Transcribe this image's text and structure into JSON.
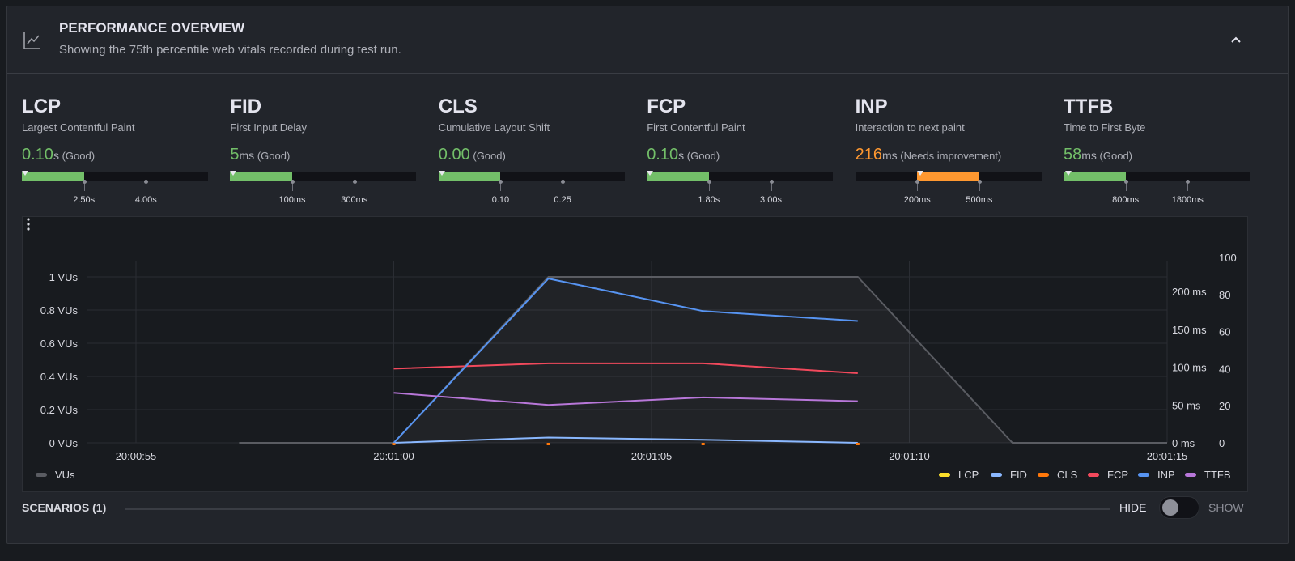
{
  "header": {
    "title": "PERFORMANCE OVERVIEW",
    "subtitle": "Showing the 75th percentile web vitals recorded during test run.",
    "icon": "line-chart-icon",
    "collapse_icon": "chevron-up-icon"
  },
  "colors": {
    "good": "#73bf69",
    "needs_improvement": "#ff9830",
    "poor": "#f2495c"
  },
  "metrics": [
    {
      "abbr": "LCP",
      "name": "Largest Contentful Paint",
      "value": "0.10",
      "unit": "s",
      "status": "(Good)",
      "rating": "good",
      "numeric": 0.1,
      "thresholds": [
        2.5,
        4.0
      ],
      "tick_labels": [
        "2.50s",
        "4.00s"
      ]
    },
    {
      "abbr": "FID",
      "name": "First Input Delay",
      "value": "5",
      "unit": "ms",
      "status": "(Good)",
      "rating": "good",
      "numeric": 5,
      "thresholds": [
        100,
        300
      ],
      "tick_labels": [
        "100ms",
        "300ms"
      ]
    },
    {
      "abbr": "CLS",
      "name": "Cumulative Layout Shift",
      "value": "0.00",
      "unit": "",
      "status": "(Good)",
      "rating": "good",
      "numeric": 0,
      "thresholds": [
        0.1,
        0.25
      ],
      "tick_labels": [
        "0.10",
        "0.25"
      ]
    },
    {
      "abbr": "FCP",
      "name": "First Contentful Paint",
      "value": "0.10",
      "unit": "s",
      "status": "(Good)",
      "rating": "good",
      "numeric": 0.1,
      "thresholds": [
        1.8,
        3.0
      ],
      "tick_labels": [
        "1.80s",
        "3.00s"
      ]
    },
    {
      "abbr": "INP",
      "name": "Interaction to next paint",
      "value": "216",
      "unit": "ms",
      "status": "(Needs improvement)",
      "rating": "needs_improvement",
      "numeric": 216,
      "thresholds": [
        200,
        500
      ],
      "tick_labels": [
        "200ms",
        "500ms"
      ]
    },
    {
      "abbr": "TTFB",
      "name": "Time to First Byte",
      "value": "58",
      "unit": "ms",
      "status": "(Good)",
      "rating": "good",
      "numeric": 58,
      "thresholds": [
        800,
        1800
      ],
      "tick_labels": [
        "800ms",
        "1800ms"
      ]
    }
  ],
  "chart_data": {
    "type": "line",
    "x_ticks": [
      "20:00:55",
      "20:01:00",
      "20:01:05",
      "20:01:10",
      "20:01:15"
    ],
    "xlim": [
      "20:00:54",
      "20:01:15"
    ],
    "y_left": {
      "ticks": [
        "0 VUs",
        "0.2 VUs",
        "0.4 VUs",
        "0.6 VUs",
        "0.8 VUs",
        "1 VUs"
      ],
      "range": [
        0,
        1
      ]
    },
    "y_ms": {
      "ticks": [
        "0 ms",
        "50 ms",
        "100 ms",
        "150 ms",
        "200 ms"
      ],
      "range": [
        0,
        219
      ]
    },
    "y_pct": {
      "ticks": [
        "0",
        "20",
        "40",
        "60",
        "80",
        "100"
      ],
      "range": [
        0,
        100
      ]
    },
    "grid": true,
    "vus": {
      "name": "VUs",
      "color": "#5a5c62",
      "x": [
        "20:00:57",
        "20:01:00",
        "20:01:03",
        "20:01:09",
        "20:01:12",
        "20:01:15"
      ],
      "values": [
        0,
        0,
        1,
        1,
        0,
        0
      ]
    },
    "series": [
      {
        "name": "LCP",
        "color": "#fade2a",
        "axis": "ms",
        "x": [],
        "values": []
      },
      {
        "name": "FID",
        "color": "#8ab8ff",
        "axis": "ms",
        "x": [
          "20:01:00",
          "20:01:03",
          "20:01:06",
          "20:01:09"
        ],
        "values": [
          0,
          7,
          4,
          0
        ]
      },
      {
        "name": "CLS",
        "color": "#ff780a",
        "axis": "pct",
        "x": [
          "20:01:00",
          "20:01:03",
          "20:01:06",
          "20:01:09"
        ],
        "values": [
          0,
          0,
          0,
          0
        ]
      },
      {
        "name": "FCP",
        "color": "#f2495c",
        "axis": "ms",
        "x": [
          "20:01:00",
          "20:01:03",
          "20:01:06",
          "20:01:09"
        ],
        "values": [
          98,
          105,
          105,
          92
        ]
      },
      {
        "name": "INP",
        "color": "#5794f2",
        "axis": "ms",
        "x": [
          "20:01:00",
          "20:01:03",
          "20:01:06",
          "20:01:09"
        ],
        "values": [
          0,
          217,
          174,
          161
        ]
      },
      {
        "name": "TTFB",
        "color": "#b877d9",
        "axis": "ms",
        "x": [
          "20:01:00",
          "20:01:03",
          "20:01:06",
          "20:01:09"
        ],
        "values": [
          66,
          50,
          60,
          55
        ]
      }
    ],
    "legend": "bottom-right"
  },
  "chart_menu_icon": "kebab-menu-icon",
  "scenarios": {
    "label": "SCENARIOS (1)",
    "hide_label": "HIDE",
    "show_label": "SHOW",
    "toggle_on": false
  }
}
